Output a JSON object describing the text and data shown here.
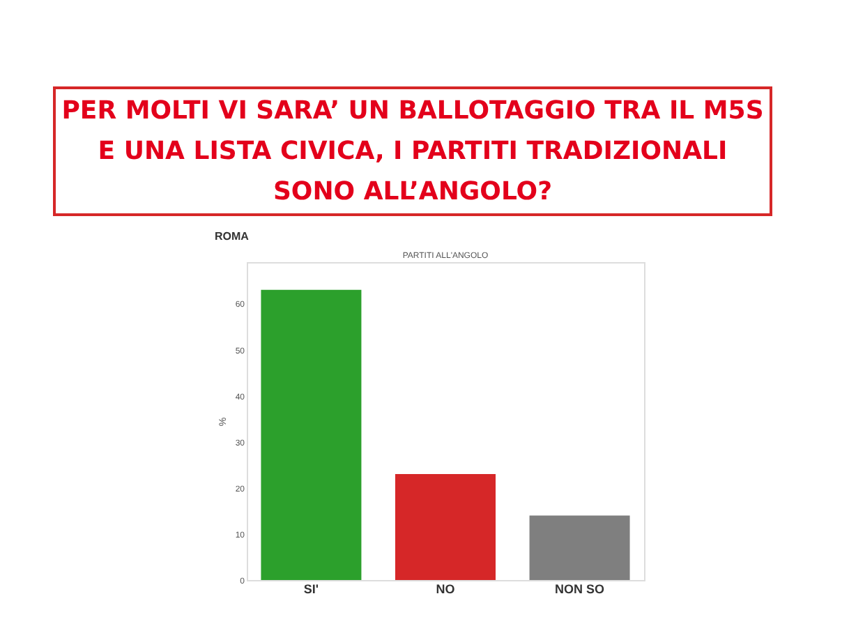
{
  "chart_data": {
    "type": "bar",
    "title": "PER MOLTI VI SARA’ UN BALLOTAGGIO TRA IL M5S E UNA LISTA CIVICA, I PARTITI TRADIZIONALI SONO ALL’ANGOLO?",
    "subtitle": "ROMA",
    "annotations": [
      "PARTITI ALL'ANGOLO"
    ],
    "ylabel": "%",
    "categories": [
      "SI'",
      "NO",
      "NON SO"
    ],
    "values": [
      63,
      23,
      14
    ],
    "colors": [
      "#2ca02c",
      "#d62728",
      "#7f7f7f"
    ],
    "ylim": [
      0,
      69
    ],
    "yticks": [
      0,
      10,
      20,
      30,
      40,
      50,
      60
    ],
    "grid": false
  }
}
